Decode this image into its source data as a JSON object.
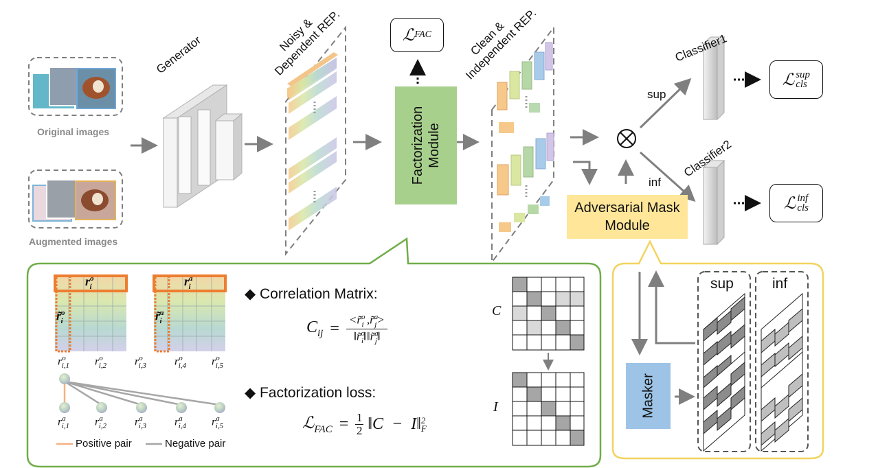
{
  "inputs": {
    "original_caption": "Original images",
    "augmented_caption": "Augmented images"
  },
  "generator": {
    "label": "Generator"
  },
  "noisy_rep": {
    "label_line1": "Noisy &",
    "label_line2": "Dependent REP."
  },
  "clean_rep": {
    "label_line1": "Clean &",
    "label_line2": "Independent REP."
  },
  "factorization_module": {
    "line1": "Factorization",
    "line2": "Module"
  },
  "loss_fac": {
    "symbol": "ℒ",
    "sub": "FAC"
  },
  "operator": "⊗",
  "branch_sup": "sup",
  "branch_inf": "inf",
  "classifier1": "Classifier1",
  "classifier2": "Classifier2",
  "loss_cls_sup": {
    "symbol": "ℒ",
    "sup": "sup",
    "sub": "cls"
  },
  "loss_cls_inf": {
    "symbol": "ℒ",
    "sup": "inf",
    "sub": "cls"
  },
  "adversarial_mask_module": {
    "line1": "Adversarial Mask",
    "line2": "Module"
  },
  "detail_fac": {
    "r_o_label": "r",
    "r_o_sup": "o",
    "r_o_sub": "i",
    "r_a_label": "r",
    "r_a_sup": "a",
    "r_a_sub": "i",
    "rt_o_label": "r̃",
    "rt_o_sup": "o",
    "rt_o_sub": "i",
    "rt_a_label": "r̃",
    "rt_a_sup": "a",
    "rt_a_sub": "i",
    "orig_items": [
      "i,1",
      "i,2",
      "i,3",
      "i,4",
      "i,5"
    ],
    "aug_items": [
      "i,1",
      "i,2",
      "i,3",
      "i,4",
      "i,5"
    ],
    "positive_pair": "Positive pair",
    "negative_pair": "Negative pair",
    "bullet1": "◆ Correlation Matrix:",
    "bullet2": "◆ Factorization loss:",
    "matrix_C": "C",
    "matrix_I": "I"
  },
  "detail_mask": {
    "sup_label": "sup",
    "inf_label": "inf",
    "masker": "Masker"
  },
  "colors": {
    "green_module": "#a8d08d",
    "adv_module": "#ffe699",
    "masker": "#9dc3e6",
    "green_border": "#70ad47",
    "yellow_border": "#f2d35e",
    "arrow": "#7f7f7f",
    "orange": "#ed7d31"
  }
}
